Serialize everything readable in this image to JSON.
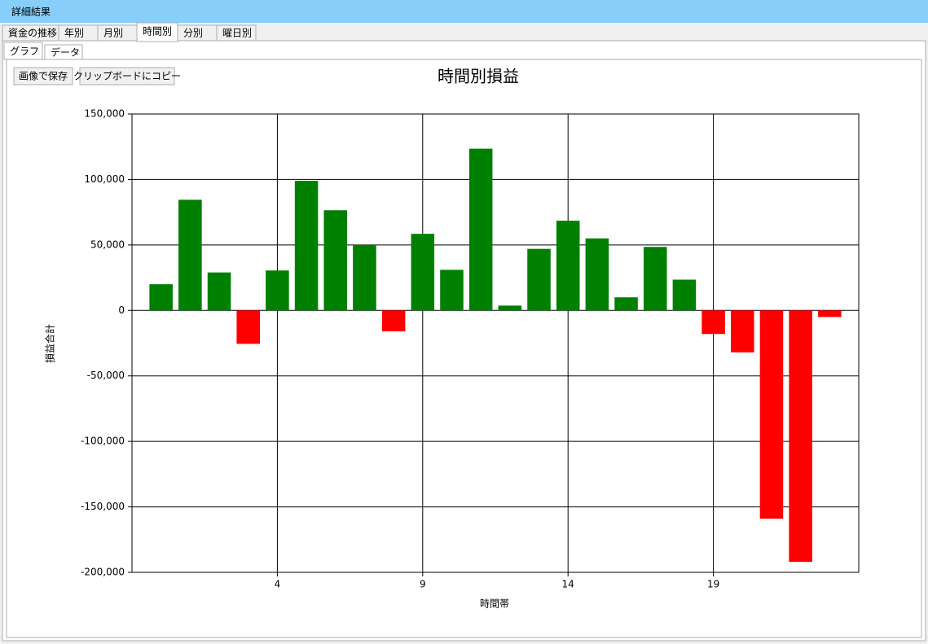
{
  "window": {
    "title": "詳細結果"
  },
  "tabs": [
    "資金の推移",
    "年別",
    "月別",
    "時間別",
    "分別",
    "曜日別"
  ],
  "subtabs": [
    "グラフ",
    "データ"
  ],
  "buttons": [
    "画像で保存",
    "クリップボードにコピー"
  ],
  "chart_data": {
    "type": "bar",
    "title": "時間別損益",
    "x_label": "時間帯",
    "y_label": "損益合計",
    "x": [
      0,
      1,
      2,
      3,
      4,
      5,
      6,
      7,
      8,
      9,
      10,
      11,
      12,
      13,
      14,
      15,
      16,
      17,
      18,
      19,
      20,
      21,
      22,
      23
    ],
    "values": [
      20000,
      84500,
      29000,
      -25500,
      30500,
      99000,
      76500,
      50000,
      -16000,
      58500,
      31000,
      123500,
      3700,
      47000,
      68500,
      55000,
      10000,
      48500,
      23500,
      -18000,
      -32000,
      -159000,
      -192000,
      -5000
    ],
    "positive_color": "#008000",
    "negative_color": "#ff0000",
    "xlim": [
      -1,
      24
    ],
    "xticks": [
      4,
      9,
      14,
      19
    ],
    "ylim": [
      -200000,
      150000
    ],
    "yticks": [
      {
        "value": -200000,
        "label": "-200,000"
      },
      {
        "value": -150000,
        "label": "-150,000"
      },
      {
        "value": -100000,
        "label": "-100,000"
      },
      {
        "value": -50000,
        "label": "-50,000"
      },
      0,
      {
        "value": 50000,
        "label": "50,000"
      },
      {
        "value": 100000,
        "label": "100,000"
      },
      {
        "value": 150000,
        "label": "150,000"
      }
    ],
    "grid": true
  }
}
